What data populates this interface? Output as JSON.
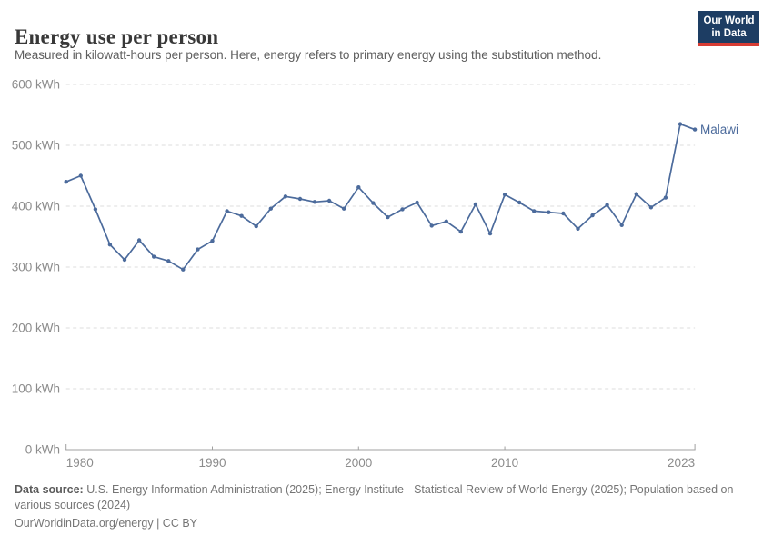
{
  "header": {
    "title": "Energy use per person",
    "subtitle": "Measured in kilowatt-hours per person. Here, energy refers to primary energy using the substitution method."
  },
  "logo": {
    "line1": "Our World",
    "line2": "in Data",
    "bg_color": "#1d3d63",
    "accent_color": "#d73c34"
  },
  "chart_data": {
    "type": "line",
    "title": "Energy use per person",
    "xlabel": "",
    "ylabel": "kWh",
    "xlim": [
      1980,
      2023
    ],
    "ylim": [
      0,
      600
    ],
    "grid": "horizontal-dashed",
    "x_ticks": [
      1980,
      1990,
      2000,
      2010,
      2023
    ],
    "y_ticks": [
      0,
      100,
      200,
      300,
      400,
      500,
      600
    ],
    "y_tick_suffix": " kWh",
    "series": [
      {
        "name": "Malawi",
        "color": "#4c6b9c",
        "x": [
          1980,
          1981,
          1982,
          1983,
          1984,
          1985,
          1986,
          1987,
          1988,
          1989,
          1990,
          1991,
          1992,
          1993,
          1994,
          1995,
          1996,
          1997,
          1998,
          1999,
          2000,
          2001,
          2002,
          2003,
          2004,
          2005,
          2006,
          2007,
          2008,
          2009,
          2010,
          2011,
          2012,
          2013,
          2014,
          2015,
          2016,
          2017,
          2018,
          2019,
          2020,
          2021,
          2022,
          2023
        ],
        "values": [
          440,
          450,
          395,
          337,
          312,
          344,
          317,
          310,
          296,
          329,
          343,
          392,
          384,
          367,
          396,
          416,
          412,
          407,
          409,
          396,
          431,
          405,
          382,
          395,
          406,
          368,
          375,
          358,
          403,
          355,
          419,
          406,
          392,
          390,
          388,
          363,
          385,
          402,
          369,
          420,
          398,
          414,
          535,
          526
        ]
      }
    ],
    "end_label": "Malawi",
    "legend_position": "end-of-line"
  },
  "footer": {
    "datasource_label": "Data source:",
    "datasource_text": " U.S. Energy Information Administration (2025); Energy Institute - Statistical Review of World Energy (2025); Population based on various sources (2024)",
    "license_line": "OurWorldinData.org/energy | CC BY"
  }
}
